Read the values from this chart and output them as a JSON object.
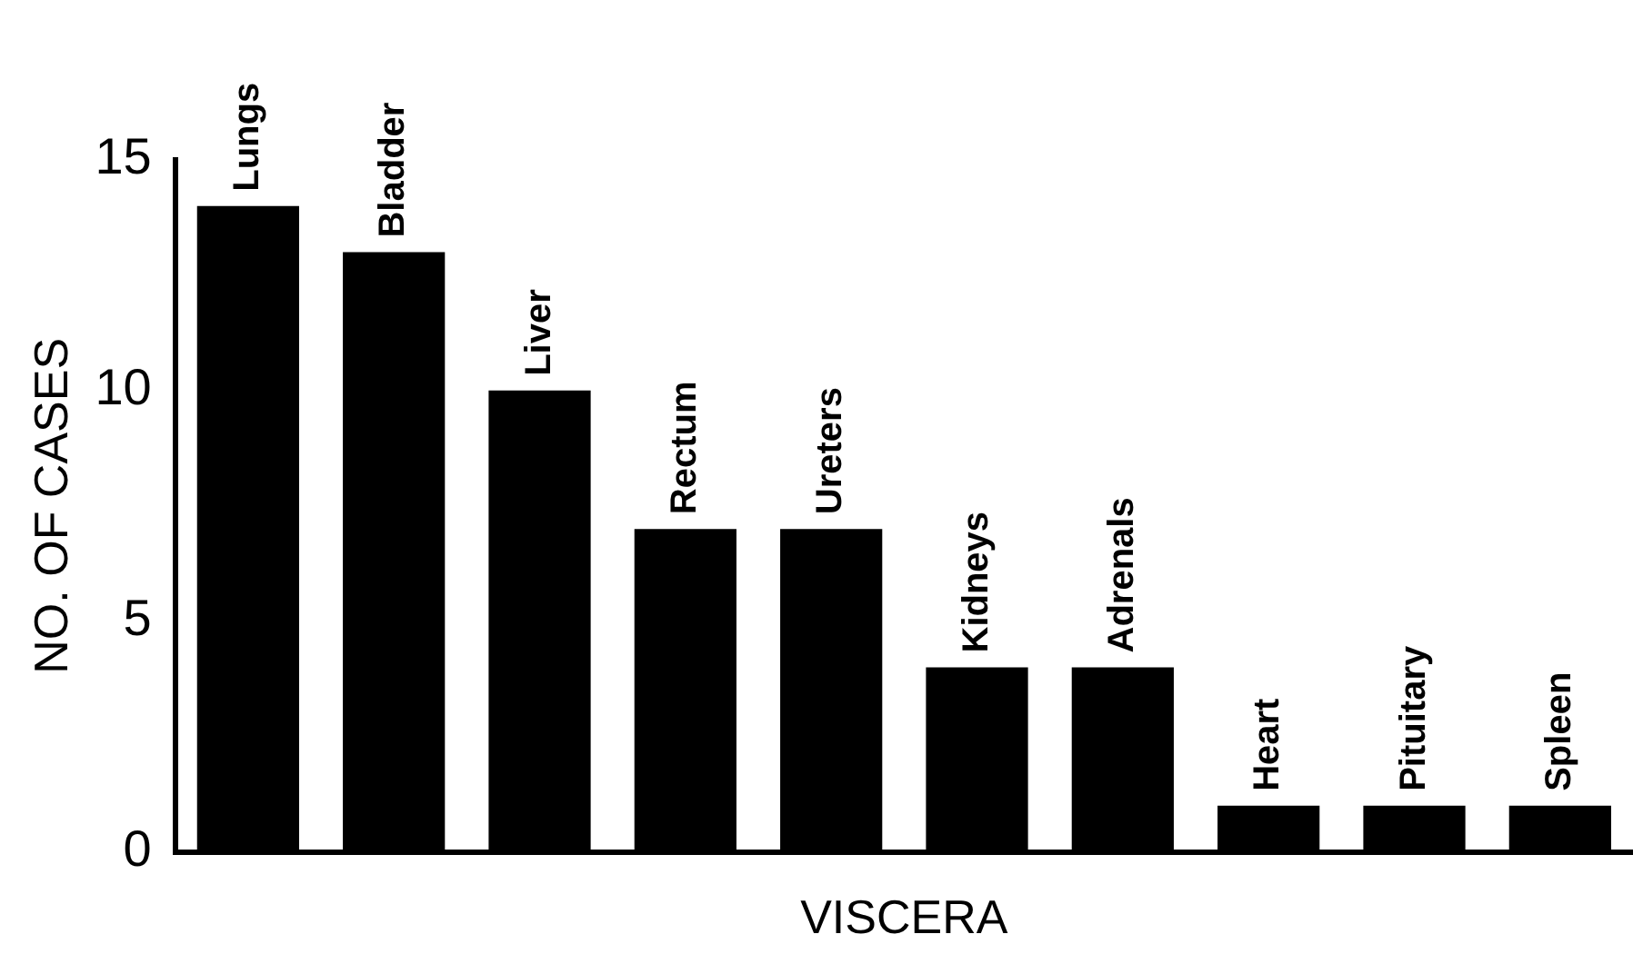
{
  "chart_data": {
    "type": "bar",
    "xlabel": "VISCERA",
    "ylabel": "NO. OF CASES",
    "categories": [
      "Lungs",
      "Bladder",
      "Liver",
      "Rectum",
      "Ureters",
      "Kidneys",
      "Adrenals",
      "Heart",
      "Pituitary",
      "Spleen"
    ],
    "values": [
      14,
      13,
      10,
      7,
      7,
      4,
      4,
      1,
      1,
      1
    ],
    "color": "#000000",
    "ylim": [
      0,
      15
    ],
    "yticks": [
      0,
      5,
      10,
      15
    ],
    "grid": false,
    "legend": false
  }
}
